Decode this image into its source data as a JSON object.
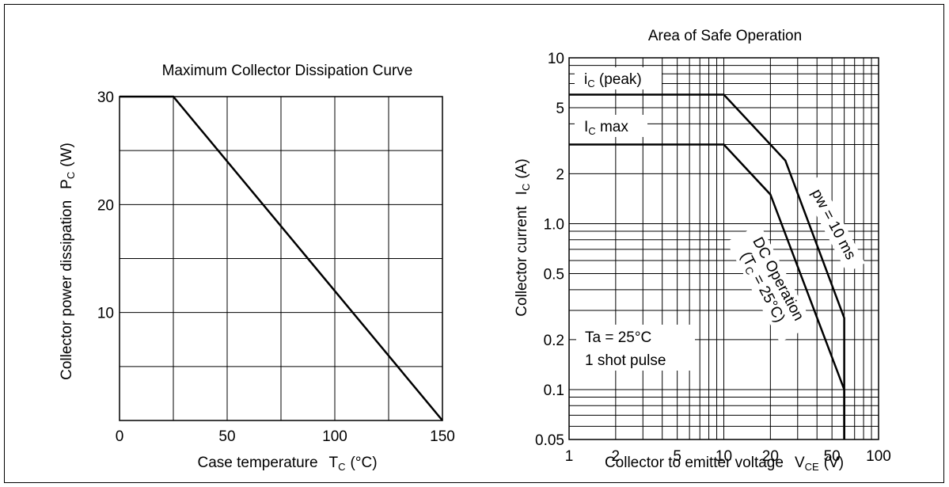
{
  "chart_data": [
    {
      "type": "line",
      "title": "Maximum Collector Dissipation Curve",
      "xlabel": "Case temperature",
      "xlabel_symbol": "T",
      "xlabel_symbol_sub": "C",
      "xlabel_unit": "(°C)",
      "ylabel": "Collector power dissipation",
      "ylabel_symbol": "P",
      "ylabel_symbol_sub": "C",
      "ylabel_unit": "(W)",
      "xlim": [
        0,
        150
      ],
      "ylim": [
        0,
        30
      ],
      "x_ticks": [
        0,
        50,
        100,
        150
      ],
      "y_ticks": [
        10,
        20,
        30
      ],
      "x_grid": [
        0,
        25,
        50,
        75,
        100,
        125,
        150
      ],
      "y_grid": [
        0,
        5,
        10,
        15,
        20,
        25,
        30
      ],
      "grid": true,
      "series": [
        {
          "points": [
            [
              0,
              30
            ],
            [
              25,
              30
            ],
            [
              150,
              0
            ]
          ]
        }
      ]
    },
    {
      "type": "line",
      "title": "Area of Safe Operation",
      "xlabel": "Collector to emitter voltage",
      "xlabel_symbol": "V",
      "xlabel_symbol_sub": "CE",
      "xlabel_unit": "(V)",
      "ylabel": "Collector current",
      "ylabel_symbol": "I",
      "ylabel_symbol_sub": "C",
      "ylabel_unit": "(A)",
      "xscale": "log",
      "yscale": "log",
      "xlim": [
        1,
        100
      ],
      "ylim": [
        0.05,
        10
      ],
      "x_ticks": [
        "1",
        "2",
        "5",
        "10",
        "20",
        "50",
        "100"
      ],
      "y_ticks": [
        "10",
        "5",
        "2",
        "1.0",
        "0.5",
        "0.2",
        "0.1",
        "0.05"
      ],
      "grid": true,
      "series": [
        {
          "label": "pw = 10 ms",
          "points": [
            [
              1,
              6
            ],
            [
              10,
              6
            ],
            [
              25,
              2.4
            ],
            [
              60,
              0.27
            ],
            [
              60,
              0.05
            ]
          ]
        },
        {
          "label": "DC Operation (T_C = 25°C)",
          "points": [
            [
              1,
              3
            ],
            [
              10,
              3
            ],
            [
              20,
              1.5
            ],
            [
              60,
              0.1
            ],
            [
              60,
              0.05
            ]
          ]
        }
      ],
      "annotations": {
        "ic_peak": {
          "main": "i",
          "sub": "C",
          "rest": " (peak)"
        },
        "ic_max": {
          "main": "I",
          "sub": "C",
          "rest": " max"
        },
        "pw_label": "pw = 10 ms",
        "dc_line1": "DC Operation",
        "dc_line2_open": "(T",
        "dc_line2_sub": "C",
        "dc_line2_rest": " = 25°C)",
        "ta_label": "Ta = 25°C",
        "pulse_label": "1 shot pulse"
      }
    }
  ]
}
